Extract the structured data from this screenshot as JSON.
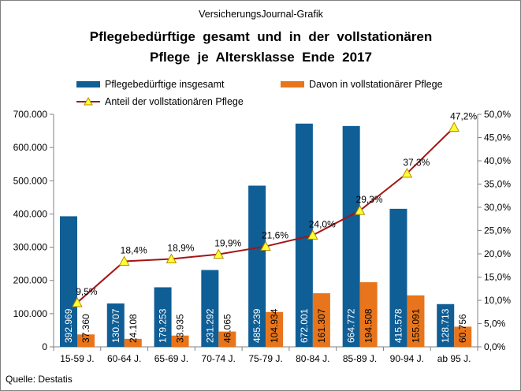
{
  "chart_data": {
    "type": "bar",
    "supertitle": "VersicherungsJournal-Grafik",
    "title_lines": [
      "Pflegebedürftige  gesamt  und  in  der  vollstationären",
      "Pflege  je  Altersklasse  Ende  2017"
    ],
    "categories": [
      "15-59 J.",
      "60-64 J.",
      "65-69 J.",
      "70-74 J.",
      "75-79 J.",
      "80-84 J.",
      "85-89 J.",
      "90-94 J.",
      "ab 95 J."
    ],
    "series": [
      {
        "name": "Pflegebedürftige insgesamt",
        "axis": "left",
        "values": [
          392969,
          130707,
          179253,
          231292,
          485239,
          672001,
          664772,
          415578,
          128713
        ],
        "labels": [
          "392.969",
          "130.707",
          "179.253",
          "231.292",
          "485.239",
          "672.001",
          "664.772",
          "415.578",
          "128.713"
        ]
      },
      {
        "name": "Davon in vollstationärer Pflege",
        "axis": "left",
        "values": [
          37360,
          24108,
          33935,
          46065,
          104934,
          161307,
          194508,
          155091,
          60756
        ],
        "labels": [
          "37.360",
          "24.108",
          "33.935",
          "46.065",
          "104.934",
          "161.307",
          "194.508",
          "155.091",
          "60.756"
        ]
      },
      {
        "name": "Anteil der vollstationären Pflege",
        "axis": "right",
        "type": "line",
        "values": [
          9.5,
          18.4,
          18.9,
          19.9,
          21.6,
          24.0,
          29.3,
          37.3,
          47.2
        ],
        "labels": [
          "9,5%",
          "18,4%",
          "18,9%",
          "19,9%",
          "21,6%",
          "24,0%",
          "29,3%",
          "37,3%",
          "47,2%"
        ]
      }
    ],
    "ylim": [
      0,
      700000
    ],
    "yticks": [
      "0",
      "100.000",
      "200.000",
      "300.000",
      "400.000",
      "500.000",
      "600.000",
      "700.000"
    ],
    "y2lim": [
      0,
      50
    ],
    "y2ticks": [
      "0,0%",
      "5,0%",
      "10,0%",
      "15,0%",
      "20,0%",
      "25,0%",
      "30,0%",
      "35,0%",
      "40,0%",
      "45,0%",
      "50,0%"
    ],
    "grid": false,
    "legend_position": "top",
    "source": "Quelle:  Destatis",
    "colors": {
      "total": "#0F5E96",
      "stationary": "#E8751B",
      "line": "#A31515",
      "marker": "#FFFF33",
      "marker_stroke": "#B58A00",
      "axis": "#808080"
    }
  }
}
